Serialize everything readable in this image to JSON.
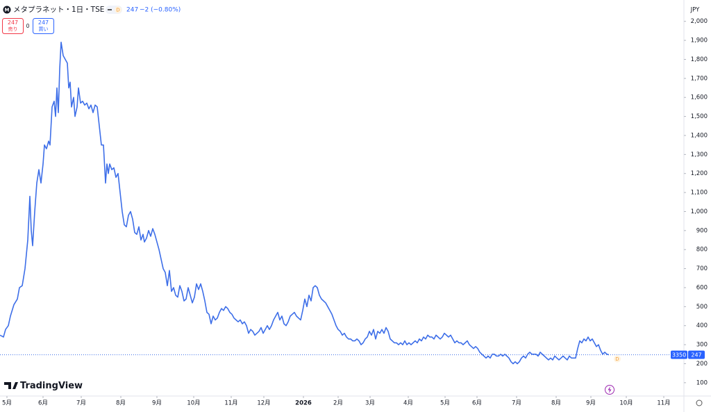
{
  "header": {
    "symbol_icon": "M",
    "title": "メタプラネット・1日・TSE",
    "interval_badge": "D",
    "last": "247",
    "change": "−2 (−0.80%)"
  },
  "trade": {
    "sell_price": "247",
    "sell_label": "売り",
    "spread": "0",
    "buy_price": "247",
    "buy_label": "買い"
  },
  "currency": "JPY",
  "logo": "TradingView",
  "chart_data": {
    "type": "line",
    "color": "#3d6ee8",
    "grid": false,
    "x": [
      0,
      5,
      8,
      12,
      15,
      20,
      25,
      28,
      32,
      36,
      40,
      43,
      45,
      47,
      50,
      53,
      56,
      59,
      62,
      64,
      67,
      70,
      72,
      75,
      78,
      80,
      82,
      84,
      86,
      88,
      91,
      94,
      97,
      99,
      101,
      103,
      106,
      108,
      111,
      113,
      116,
      119,
      122,
      125,
      128,
      131,
      134,
      137,
      140,
      143,
      146,
      149,
      152,
      154,
      156,
      158,
      161,
      164,
      167,
      170,
      173,
      176,
      179,
      182,
      185,
      188,
      191,
      194,
      197,
      200,
      203,
      206,
      208,
      211,
      214,
      217,
      220,
      223,
      226,
      229,
      232,
      235,
      238,
      241,
      244,
      247,
      250,
      253,
      256,
      259,
      262,
      265,
      268,
      271,
      274,
      277,
      280,
      283,
      286,
      289,
      292,
      295,
      298,
      301,
      304,
      307,
      310,
      313,
      316,
      319,
      322,
      325,
      328,
      331,
      334,
      337,
      340,
      343,
      346,
      349,
      352,
      355,
      358,
      361,
      364,
      367,
      370,
      373,
      376,
      379,
      382,
      385,
      388,
      391,
      394,
      397,
      400,
      403,
      406,
      409,
      412,
      415,
      418,
      421,
      424,
      427,
      430,
      433,
      436,
      439,
      442,
      445,
      448,
      451,
      454,
      457,
      460,
      463,
      466,
      469,
      472,
      475,
      478,
      481,
      484,
      487,
      490,
      493,
      496,
      499,
      502,
      505,
      508,
      511,
      514,
      517,
      520,
      523,
      526,
      529,
      532,
      535,
      538,
      541,
      544,
      547,
      550,
      553,
      556,
      559,
      562,
      565,
      568,
      571,
      574,
      577,
      580,
      583,
      586,
      589,
      592,
      595,
      598,
      601,
      604,
      607,
      610,
      613,
      616,
      619,
      622,
      625,
      628,
      631,
      634,
      637,
      640,
      643,
      646,
      649,
      652,
      655,
      658,
      661,
      664,
      667,
      670,
      673,
      676,
      679,
      682,
      685,
      688,
      691,
      694,
      697,
      700,
      703,
      706,
      709,
      712,
      715,
      718,
      721,
      724,
      727,
      730,
      733,
      736,
      739,
      742,
      745,
      748,
      751,
      754,
      757,
      760,
      763,
      766,
      769,
      772,
      775,
      778,
      781,
      784,
      787,
      790,
      793,
      796,
      799,
      802,
      805,
      808,
      811,
      814,
      817,
      820,
      823,
      826,
      829,
      832,
      835,
      838,
      841,
      844,
      847,
      850,
      853,
      856,
      859,
      862,
      865,
      868,
      871,
      874,
      877
    ],
    "values": [
      350,
      340,
      380,
      400,
      450,
      510,
      540,
      600,
      610,
      700,
      850,
      1080,
      900,
      820,
      1000,
      1150,
      1220,
      1150,
      1250,
      1350,
      1330,
      1370,
      1350,
      1550,
      1580,
      1500,
      1650,
      1520,
      1750,
      1890,
      1820,
      1800,
      1780,
      1650,
      1680,
      1550,
      1600,
      1500,
      1550,
      1650,
      1570,
      1580,
      1560,
      1570,
      1540,
      1560,
      1520,
      1560,
      1550,
      1450,
      1350,
      1350,
      1150,
      1250,
      1200,
      1250,
      1220,
      1230,
      1180,
      1200,
      1100,
      1000,
      930,
      920,
      980,
      1000,
      960,
      890,
      880,
      920,
      850,
      880,
      840,
      860,
      900,
      870,
      910,
      880,
      840,
      800,
      750,
      700,
      680,
      610,
      690,
      580,
      600,
      560,
      550,
      610,
      580,
      530,
      540,
      600,
      560,
      520,
      550,
      620,
      590,
      620,
      580,
      530,
      470,
      460,
      410,
      450,
      430,
      440,
      470,
      490,
      480,
      500,
      490,
      470,
      460,
      440,
      430,
      420,
      430,
      410,
      420,
      400,
      360,
      380,
      370,
      350,
      360,
      370,
      390,
      360,
      380,
      400,
      380,
      400,
      430,
      450,
      470,
      430,
      450,
      410,
      400,
      420,
      450,
      460,
      470,
      450,
      440,
      430,
      480,
      540,
      500,
      560,
      530,
      600,
      610,
      600,
      560,
      540,
      530,
      520,
      500,
      480,
      460,
      430,
      400,
      380,
      370,
      350,
      360,
      340,
      330,
      330,
      320,
      320,
      330,
      320,
      300,
      310,
      330,
      340,
      370,
      350,
      380,
      330,
      370,
      360,
      380,
      360,
      390,
      370,
      330,
      320,
      310,
      310,
      300,
      310,
      300,
      320,
      300,
      310,
      300,
      310,
      320,
      310,
      330,
      320,
      340,
      330,
      350,
      340,
      340,
      330,
      350,
      340,
      330,
      340,
      360,
      350,
      340,
      350,
      330,
      310,
      320,
      310,
      310,
      300,
      310,
      320,
      300,
      290,
      280,
      290,
      280,
      260,
      250,
      240,
      230,
      240,
      230,
      250,
      250,
      240,
      240,
      250,
      240,
      250,
      240,
      230,
      210,
      200,
      210,
      200,
      210,
      230,
      240,
      230,
      250,
      260,
      250,
      250,
      250,
      240,
      260,
      250,
      240,
      230,
      220,
      230,
      220,
      240,
      230,
      220,
      230,
      240,
      230,
      220,
      240,
      230,
      230,
      230,
      280,
      320,
      310,
      330,
      320,
      340,
      320,
      330,
      310,
      290,
      300,
      270,
      250,
      260,
      250,
      247
    ],
    "xlim": [
      0,
      985
    ],
    "ylim": [
      30,
      2083
    ],
    "xticks": [
      {
        "value": 10,
        "label": "5月"
      },
      {
        "value": 62,
        "label": "6月"
      },
      {
        "value": 117,
        "label": "7月"
      },
      {
        "value": 174,
        "label": "8月"
      },
      {
        "value": 226,
        "label": "9月"
      },
      {
        "value": 279,
        "label": "10月"
      },
      {
        "value": 333,
        "label": "11月"
      },
      {
        "value": 380,
        "label": "12月"
      },
      {
        "value": 437,
        "label": "2026"
      },
      {
        "value": 487,
        "label": "2月"
      },
      {
        "value": 533,
        "label": "3月"
      },
      {
        "value": 588,
        "label": "4月"
      },
      {
        "value": 641,
        "label": "5月"
      },
      {
        "value": 687,
        "label": "6月"
      },
      {
        "value": 744,
        "label": "7月"
      },
      {
        "value": 801,
        "label": "8月"
      },
      {
        "value": 851,
        "label": "9月"
      },
      {
        "value": 902,
        "label": "10月"
      },
      {
        "value": 956,
        "label": "11月"
      }
    ],
    "yticks": [
      100,
      200,
      300,
      400,
      500,
      600,
      700,
      800,
      900,
      {
        "value": 1000,
        "label": "1,000"
      },
      {
        "value": 1100,
        "label": "1,100"
      },
      {
        "value": 1200,
        "label": "1,200"
      },
      {
        "value": 1300,
        "label": "1,300"
      },
      {
        "value": 1400,
        "label": "1,400"
      },
      {
        "value": 1500,
        "label": "1,500"
      },
      {
        "value": 1600,
        "label": "1,600"
      },
      {
        "value": 1700,
        "label": "1,700"
      },
      {
        "value": 1800,
        "label": "1,800"
      },
      {
        "value": 1900,
        "label": "1,900"
      },
      {
        "value": 2000,
        "label": "2,000"
      }
    ],
    "last_value": 247,
    "countdown": "3350",
    "event_marker": "D"
  }
}
